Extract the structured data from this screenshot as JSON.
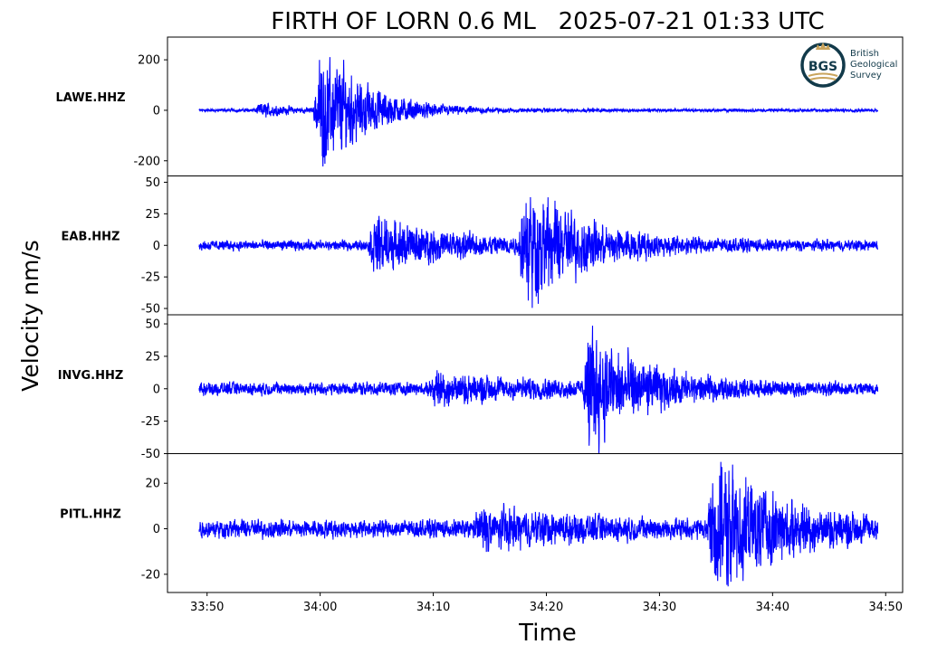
{
  "title": "FIRTH OF LORN 0.6 ML   2025-07-21 01:33 UTC",
  "ylabel": "Velocity nm/s",
  "xlabel": "Time",
  "logo": {
    "name": "BGS",
    "lines": [
      "British",
      "Geological",
      "Survey"
    ],
    "ring_color": "#123a4a",
    "accent_color": "#c9a45c"
  },
  "colors": {
    "trace": "#0000ff",
    "axes": "#000000"
  },
  "chart_data": {
    "type": "line",
    "x_unit": "time (mm:ss, UTC hour 01)",
    "x_ticks": [
      "33:50",
      "34:00",
      "34:10",
      "34:20",
      "34:30",
      "34:40",
      "34:50"
    ],
    "xlim": [
      "33:46.5",
      "34:51.5"
    ],
    "trace_start": "33:49.3",
    "trace_end": "34:49.3",
    "grid": false,
    "panels": [
      {
        "station": "LAWE.HHZ",
        "ylim": [
          -260,
          290
        ],
        "y_ticks": [
          -200,
          0,
          200
        ],
        "y_tick_labels": [
          "-200",
          "0",
          "200"
        ],
        "noise_amp": 6,
        "arrivals": [
          {
            "time": "33:54.2",
            "peak": 35,
            "decay_s": 2.5
          },
          {
            "time": "33:59.4",
            "peak": 270,
            "decay_s": 3.5
          },
          {
            "time": "34:00.8",
            "peak": 55,
            "decay_s": 5.0
          }
        ]
      },
      {
        "station": "EAB.HHZ",
        "ylim": [
          -55,
          55
        ],
        "y_ticks": [
          -50,
          -25,
          0,
          25,
          50
        ],
        "y_tick_labels": [
          "-50",
          "-25",
          "0",
          "25",
          "50"
        ],
        "noise_amp": 4,
        "arrivals": [
          {
            "time": "34:04.2",
            "peak": 22,
            "decay_s": 7.0
          },
          {
            "time": "34:17.5",
            "peak": 48,
            "decay_s": 5.5
          }
        ]
      },
      {
        "station": "INVG.HHZ",
        "ylim": [
          -50,
          57
        ],
        "y_ticks": [
          -50,
          -25,
          0,
          25,
          50
        ],
        "y_tick_labels": [
          "-50",
          "-25",
          "0",
          "25",
          "50"
        ],
        "noise_amp": 5,
        "arrivals": [
          {
            "time": "34:09.5",
            "peak": 11,
            "decay_s": 8.0
          },
          {
            "time": "34:23.2",
            "peak": 50,
            "decay_s": 4.5
          }
        ]
      },
      {
        "station": "PITL.HHZ",
        "ylim": [
          -28,
          33
        ],
        "y_ticks": [
          -20,
          0,
          20
        ],
        "y_tick_labels": [
          "-20",
          "0",
          "20"
        ],
        "noise_amp": 4,
        "arrivals": [
          {
            "time": "34:13.5",
            "peak": 7,
            "decay_s": 9.0
          },
          {
            "time": "34:34.2",
            "peak": 30,
            "decay_s": 6.0
          }
        ]
      }
    ]
  }
}
